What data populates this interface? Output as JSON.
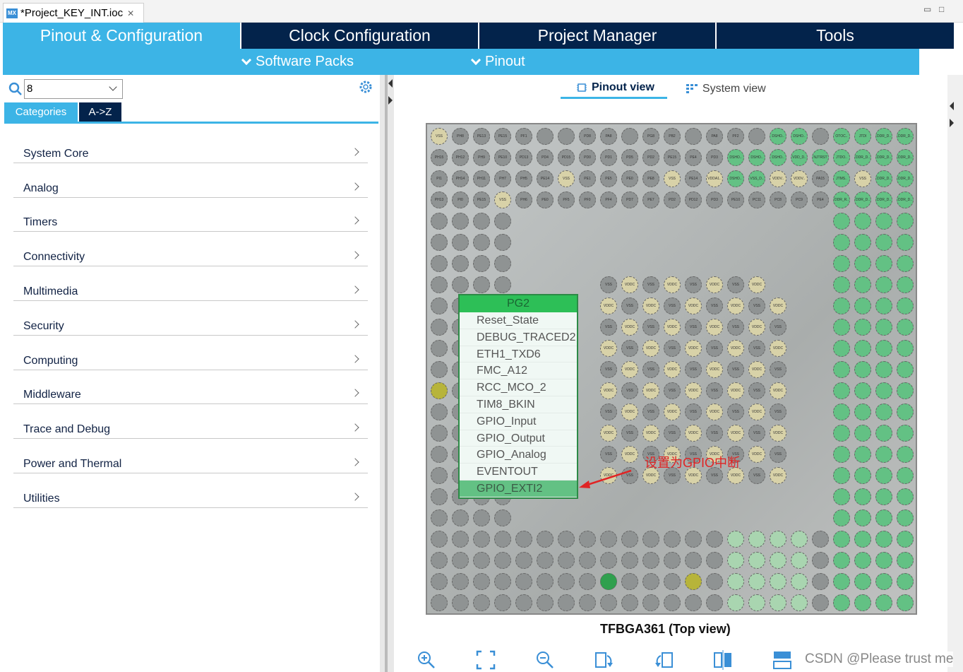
{
  "window": {
    "tab_title": "*Project_KEY_INT.ioc",
    "app_icon": "MX",
    "minimize": "▭",
    "maximize": "□"
  },
  "main_tabs": [
    "Pinout & Configuration",
    "Clock Configuration",
    "Project Manager",
    "Tools"
  ],
  "sub_menu": {
    "software_packs": "Software Packs",
    "pinout": "Pinout"
  },
  "search": {
    "value": "8"
  },
  "category_tabs": {
    "categories": "Categories",
    "az": "A->Z"
  },
  "categories": [
    "System Core",
    "Analog",
    "Timers",
    "Connectivity",
    "Multimedia",
    "Security",
    "Computing",
    "Middleware",
    "Trace and Debug",
    "Power and Thermal",
    "Utilities"
  ],
  "view_tabs": {
    "pinout": "Pinout view",
    "system": "System view"
  },
  "package": {
    "title": "TFBGA361 (Top view)"
  },
  "context_menu": {
    "pin": "PG2",
    "items": [
      "Reset_State",
      "DEBUG_TRACED2",
      "ETH1_TXD6",
      "FMC_A12",
      "RCC_MCO_2",
      "TIM8_BKIN",
      "GPIO_Input",
      "GPIO_Output",
      "GPIO_Analog",
      "EVENTOUT",
      "GPIO_EXTI2"
    ],
    "selected": "GPIO_EXTI2"
  },
  "annotation": "设置为GPIO中断",
  "watermark": "CSDN @Please trust me",
  "colors": {
    "accent": "#3cb4e6",
    "navy": "#03234b",
    "pin_green": "#63c184",
    "annotation_red": "#e02424"
  },
  "pins": {
    "row0": [
      "VSS",
      "PH8",
      "PE13",
      "PE15",
      "PF1",
      "",
      "",
      "PD8",
      "PA8",
      "",
      "PG8",
      "PB2",
      "",
      "PA8",
      "PF2",
      "",
      "DSHO..",
      "DSHO..",
      "",
      "OTOC..",
      "JTDI",
      "DDR_D..",
      "DDR_D..",
      "VSS"
    ],
    "row1": [
      "PH15",
      "PH12",
      "PH9",
      "PE10",
      "PD13",
      "PD4",
      "PD15",
      "PD0",
      "PD1",
      "PD5",
      "PD2",
      "PE15",
      "PE4",
      "PD3",
      "DSHO..",
      "DSHO..",
      "DSHO..",
      "VDD_D..",
      "NJTRST",
      "JTDO..",
      "DDR_D..",
      "DDR_D..",
      "DDR_D..",
      "DDR_D.."
    ],
    "row2": [
      "PI1",
      "PH14",
      "PH11",
      "PH7",
      "PH5",
      "PE14",
      "VSS",
      "PE1",
      "PE5",
      "PE0",
      "PE8",
      "VSS",
      "PE14",
      "VDDA1..",
      "DSHO..",
      "VSS_D..",
      "VDDV..",
      "VDDV..",
      "PA15",
      "JTMS..",
      "VSS",
      "DDR_D..",
      "DDR_D..",
      "DDR_D.."
    ],
    "row3": [
      "PH13",
      "PI0",
      "PE15",
      "VSS",
      "PH6",
      "PE0",
      "PF5",
      "PF0",
      "PF4",
      "PD7",
      "PE7",
      "PD2",
      "PD12",
      "PD3",
      "PE10",
      "PC11",
      "PC8",
      "PC9",
      "PE4",
      "DDR_R..",
      "DDR_D..",
      "DDR_D..",
      "DDR_D..",
      "DDR_D.."
    ]
  }
}
